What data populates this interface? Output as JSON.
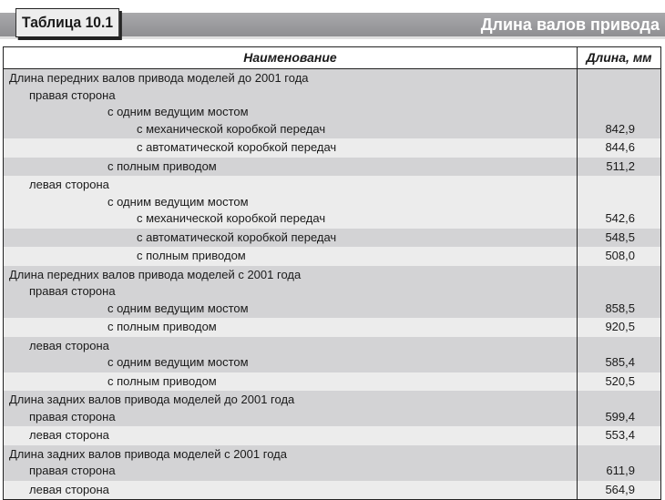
{
  "table_tag": "Таблица 10.1",
  "table_title": "Длина валов привода",
  "columns": {
    "name": "Наименование",
    "length": "Длина, мм"
  },
  "colors": {
    "shade_dark": "#d3d3d5",
    "shade_light": "#ececec",
    "title_bar": "#9a9a9d"
  },
  "rows": [
    {
      "shade": "gray",
      "lines": [
        {
          "level": 0,
          "text": "Длина передних валов привода моделей до 2001 года"
        },
        {
          "level": 1,
          "text": "правая сторона"
        },
        {
          "level": 2,
          "text": "с одним ведущим мостом"
        },
        {
          "level": 3,
          "text": "с механической коробкой передач"
        }
      ],
      "value": "842,9"
    },
    {
      "shade": "light",
      "lines": [
        {
          "level": 3,
          "text": "с автоматической коробкой передач"
        }
      ],
      "value": "844,6"
    },
    {
      "shade": "gray",
      "lines": [
        {
          "level": 2,
          "text": "с полным приводом"
        }
      ],
      "value": "511,2"
    },
    {
      "shade": "light",
      "lines": [
        {
          "level": 1,
          "text": "левая сторона"
        },
        {
          "level": 2,
          "text": "с одним ведущим мостом"
        },
        {
          "level": 3,
          "text": "с механической коробкой передач"
        }
      ],
      "value": "542,6"
    },
    {
      "shade": "gray",
      "lines": [
        {
          "level": 3,
          "text": "с автоматической коробкой передач"
        }
      ],
      "value": "548,5"
    },
    {
      "shade": "light",
      "lines": [
        {
          "level": 3,
          "text": "с полным приводом"
        }
      ],
      "value": "508,0"
    },
    {
      "shade": "gray",
      "lines": [
        {
          "level": 0,
          "text": "Длина передних валов привода моделей с 2001 года"
        },
        {
          "level": 1,
          "text": "правая сторона"
        },
        {
          "level": 2,
          "text": "с одним ведущим мостом"
        }
      ],
      "value": "858,5"
    },
    {
      "shade": "light",
      "lines": [
        {
          "level": 2,
          "text": "с полным приводом"
        }
      ],
      "value": "920,5"
    },
    {
      "shade": "gray",
      "lines": [
        {
          "level": 1,
          "text": "левая сторона"
        },
        {
          "level": 2,
          "text": "с одним ведущим мостом"
        }
      ],
      "value": "585,4"
    },
    {
      "shade": "light",
      "lines": [
        {
          "level": 2,
          "text": "с полным приводом"
        }
      ],
      "value": "520,5"
    },
    {
      "shade": "gray",
      "lines": [
        {
          "level": 0,
          "text": "Длина задних валов привода моделей до 2001 года"
        },
        {
          "level": 1,
          "text": "правая сторона"
        }
      ],
      "value": "599,4"
    },
    {
      "shade": "light",
      "lines": [
        {
          "level": 1,
          "text": "левая сторона"
        }
      ],
      "value": "553,4"
    },
    {
      "shade": "gray",
      "lines": [
        {
          "level": 0,
          "text": "Длина задних валов привода моделей с 2001 года"
        },
        {
          "level": 1,
          "text": "правая сторона"
        }
      ],
      "value": "611,9"
    },
    {
      "shade": "light",
      "lines": [
        {
          "level": 1,
          "text": "левая сторона"
        }
      ],
      "value": "564,9"
    }
  ]
}
